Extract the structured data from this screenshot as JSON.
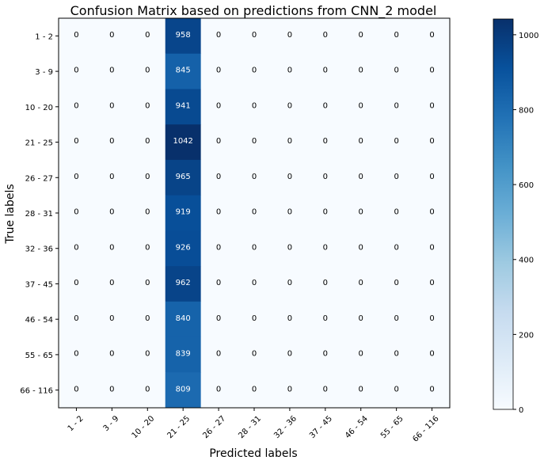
{
  "chart_data": {
    "type": "heatmap",
    "title": "Confusion Matrix based on predictions from CNN_2 model",
    "xlabel": "Predicted labels",
    "ylabel": "True labels",
    "x_categories": [
      "1 - 2",
      "3 - 9",
      "10 - 20",
      "21 - 25",
      "26 - 27",
      "28 - 31",
      "32 - 36",
      "37 - 45",
      "46 - 54",
      "55 - 65",
      "66 - 116"
    ],
    "y_categories": [
      "1 - 2",
      "3 - 9",
      "10 - 20",
      "21 - 25",
      "26 - 27",
      "28 - 31",
      "32 - 36",
      "37 - 45",
      "46 - 54",
      "55 - 65",
      "66 - 116"
    ],
    "matrix": [
      [
        0,
        0,
        0,
        958,
        0,
        0,
        0,
        0,
        0,
        0,
        0
      ],
      [
        0,
        0,
        0,
        845,
        0,
        0,
        0,
        0,
        0,
        0,
        0
      ],
      [
        0,
        0,
        0,
        941,
        0,
        0,
        0,
        0,
        0,
        0,
        0
      ],
      [
        0,
        0,
        0,
        1042,
        0,
        0,
        0,
        0,
        0,
        0,
        0
      ],
      [
        0,
        0,
        0,
        965,
        0,
        0,
        0,
        0,
        0,
        0,
        0
      ],
      [
        0,
        0,
        0,
        919,
        0,
        0,
        0,
        0,
        0,
        0,
        0
      ],
      [
        0,
        0,
        0,
        926,
        0,
        0,
        0,
        0,
        0,
        0,
        0
      ],
      [
        0,
        0,
        0,
        962,
        0,
        0,
        0,
        0,
        0,
        0,
        0
      ],
      [
        0,
        0,
        0,
        840,
        0,
        0,
        0,
        0,
        0,
        0,
        0
      ],
      [
        0,
        0,
        0,
        839,
        0,
        0,
        0,
        0,
        0,
        0,
        0
      ],
      [
        0,
        0,
        0,
        809,
        0,
        0,
        0,
        0,
        0,
        0,
        0
      ]
    ],
    "colorbar": {
      "range": [
        0,
        1042
      ],
      "ticks": [
        0,
        200,
        400,
        600,
        800,
        1000
      ],
      "colormap": "Blues",
      "low_color": "#f7fbff",
      "high_color": "#08306b"
    }
  }
}
